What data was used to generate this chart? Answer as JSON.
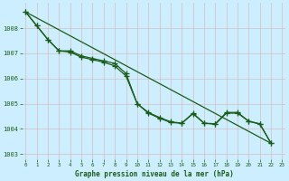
{
  "title": "Graphe pression niveau de la mer (hPa)",
  "bg_color": "#cceeff",
  "line_color": "#1a5c1a",
  "x_labels": [
    "0",
    "1",
    "2",
    "3",
    "4",
    "5",
    "6",
    "7",
    "8",
    "9",
    "10",
    "11",
    "12",
    "13",
    "14",
    "15",
    "16",
    "17",
    "18",
    "19",
    "20",
    "21",
    "22",
    "23"
  ],
  "ylim": [
    1002.8,
    1009.0
  ],
  "yticks": [
    1003,
    1004,
    1005,
    1006,
    1007,
    1008
  ],
  "xlim": [
    -0.3,
    23.3
  ],
  "series1": [
    1008.65,
    1008.1,
    null,
    null,
    null,
    null,
    null,
    null,
    null,
    null,
    null,
    null,
    null,
    null,
    null,
    null,
    null,
    null,
    null,
    null,
    null,
    null,
    null,
    null
  ],
  "series2": [
    1008.65,
    null,
    1007.55,
    1007.1,
    1007.05,
    1006.85,
    1006.75,
    1006.65,
    1006.5,
    1006.1,
    1005.0,
    1004.62,
    1004.42,
    1004.25,
    1004.22,
    1004.62,
    1004.22,
    1004.18,
    1004.62,
    1004.62,
    1004.3,
    1004.18,
    1003.42,
    null
  ],
  "series3": [
    null,
    1008.1,
    1007.55,
    1007.1,
    1007.1,
    1006.9,
    1006.8,
    1006.7,
    1006.6,
    1006.2,
    1005.0,
    1004.65,
    1004.45,
    1004.28,
    1004.22,
    1004.6,
    1004.22,
    1004.2,
    1004.65,
    1004.65,
    1004.3,
    1004.2,
    1003.42,
    null
  ],
  "trend_x": [
    0,
    22
  ],
  "trend_y": [
    1008.65,
    1003.42
  ]
}
